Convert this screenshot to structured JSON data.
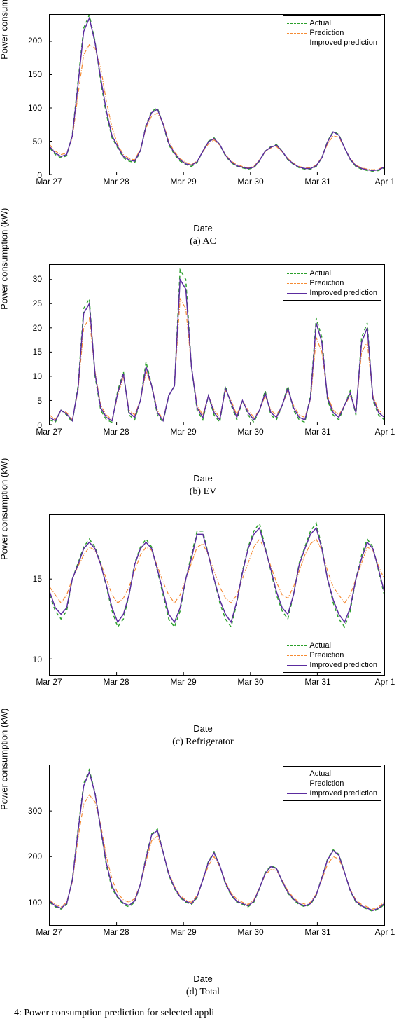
{
  "legend_labels": {
    "actual": "Actual",
    "prediction": "Prediction",
    "improved": "Improved prediction"
  },
  "series_style": {
    "actual": {
      "color": "#2ca02c",
      "width": 1.5,
      "dash": "5,4"
    },
    "prediction": {
      "color": "#f58b34",
      "width": 1.2,
      "dash": "6,2,1,2"
    },
    "improved": {
      "color": "#5b2c9f",
      "width": 1.5,
      "dash": ""
    }
  },
  "x_ticks": [
    "Mar 27",
    "Mar 28",
    "Mar 29",
    "Mar 30",
    "Mar 31",
    "Apr 1"
  ],
  "x_label": "Date",
  "y_label": "Power consumption (kW)",
  "charts": [
    {
      "id": "ac",
      "caption": "(a) AC",
      "ylim": [
        0,
        240
      ],
      "y_ticks": [
        0,
        50,
        100,
        150,
        200
      ],
      "legend_pos": "top-right",
      "series": {
        "actual": [
          40,
          30,
          25,
          28,
          60,
          140,
          220,
          240,
          200,
          140,
          90,
          55,
          40,
          25,
          20,
          18,
          35,
          75,
          95,
          100,
          75,
          45,
          30,
          20,
          15,
          12,
          18,
          35,
          50,
          55,
          45,
          28,
          18,
          12,
          10,
          8,
          10,
          20,
          35,
          42,
          45,
          35,
          22,
          15,
          10,
          8,
          8,
          12,
          25,
          50,
          65,
          60,
          40,
          22,
          12,
          8,
          6,
          5,
          6,
          10
        ],
        "prediction": [
          45,
          35,
          30,
          32,
          55,
          120,
          180,
          195,
          190,
          160,
          110,
          70,
          45,
          30,
          24,
          22,
          38,
          70,
          88,
          92,
          78,
          50,
          34,
          24,
          18,
          15,
          20,
          34,
          46,
          52,
          44,
          30,
          20,
          15,
          12,
          10,
          12,
          22,
          34,
          40,
          42,
          34,
          24,
          17,
          12,
          10,
          10,
          14,
          26,
          46,
          58,
          56,
          40,
          24,
          14,
          10,
          8,
          7,
          8,
          12
        ],
        "improved": [
          42,
          32,
          27,
          30,
          58,
          135,
          215,
          235,
          198,
          145,
          95,
          58,
          42,
          27,
          22,
          20,
          36,
          73,
          93,
          98,
          76,
          47,
          32,
          22,
          16,
          14,
          19,
          35,
          49,
          54,
          45,
          29,
          19,
          13,
          11,
          9,
          11,
          21,
          35,
          41,
          44,
          35,
          23,
          16,
          11,
          9,
          9,
          13,
          25,
          49,
          64,
          59,
          40,
          23,
          13,
          9,
          7,
          6,
          7,
          11
        ]
      }
    },
    {
      "id": "ev",
      "caption": "(b) EV",
      "ylim": [
        0,
        33
      ],
      "y_ticks": [
        0,
        5,
        10,
        15,
        20,
        25,
        30
      ],
      "legend_pos": "top-right",
      "series": {
        "actual": [
          1,
          0.5,
          3,
          2,
          0.5,
          8,
          24,
          26,
          10,
          3,
          1,
          0.5,
          7,
          11,
          2,
          1,
          5,
          13,
          8,
          2,
          0.5,
          6,
          8,
          32,
          30,
          12,
          3,
          1,
          6,
          2,
          0.5,
          8,
          4,
          1,
          5,
          2,
          0.5,
          3,
          7,
          2,
          1,
          4,
          8,
          3,
          1,
          0.5,
          6,
          22,
          18,
          5,
          2,
          1,
          4,
          7,
          2,
          18,
          21,
          5,
          2,
          1
        ],
        "prediction": [
          2,
          1,
          3,
          2.5,
          1,
          7,
          20,
          22,
          11,
          4,
          2,
          1,
          6,
          10,
          3,
          2,
          5,
          11,
          8,
          3,
          1,
          6,
          8,
          26,
          24,
          12,
          4,
          2,
          6,
          3,
          1.5,
          7,
          5,
          2,
          5,
          3,
          1.5,
          3,
          6,
          3,
          2,
          4,
          7,
          4,
          2,
          1.5,
          5,
          18,
          15,
          6,
          3,
          2,
          4,
          6,
          3,
          15,
          17,
          6,
          3,
          2
        ],
        "improved": [
          1.5,
          0.8,
          3,
          2.2,
          0.8,
          7.5,
          23,
          25,
          10.5,
          3.5,
          1.5,
          0.8,
          6.5,
          10.5,
          2.5,
          1.5,
          5,
          12,
          8,
          2.5,
          0.8,
          6,
          8,
          30,
          28,
          12,
          3.5,
          1.5,
          6,
          2.5,
          1,
          7.5,
          4.5,
          1.5,
          5,
          2.5,
          1,
          3,
          6.5,
          2.5,
          1.5,
          4,
          7.5,
          3.5,
          1.5,
          1,
          5.5,
          21,
          17,
          5.5,
          2.5,
          1.5,
          4,
          6.5,
          2.5,
          17,
          20,
          5.5,
          2.5,
          1.5
        ]
      }
    },
    {
      "id": "fridge",
      "caption": "(c) Refrigerator",
      "ylim": [
        9,
        19
      ],
      "y_ticks": [
        10,
        15
      ],
      "legend_pos": "bottom-right",
      "series": {
        "actual": [
          14,
          13,
          12.5,
          13,
          15,
          16,
          17,
          17.5,
          17,
          16,
          14.5,
          13,
          12,
          12.5,
          14,
          16,
          17,
          17.5,
          17,
          15.5,
          14,
          12.5,
          12,
          13,
          15,
          16.5,
          18,
          18,
          16.5,
          15,
          13.5,
          12.5,
          12,
          13.5,
          15.5,
          17,
          18,
          18.5,
          17,
          15.5,
          14,
          13,
          12.5,
          14,
          16,
          17,
          18,
          18.5,
          17,
          15,
          13.5,
          12.5,
          12,
          13,
          15,
          16.5,
          17.5,
          17,
          15.5,
          14
        ],
        "prediction": [
          14.5,
          14,
          13.5,
          14,
          15,
          15.8,
          16.5,
          17,
          16.8,
          16,
          15,
          14,
          13.5,
          13.8,
          14.5,
          15.5,
          16.5,
          17,
          16.8,
          15.8,
          14.8,
          14,
          13.5,
          14,
          15,
          16,
          17,
          17.2,
          16.5,
          15.5,
          14.5,
          13.8,
          13.5,
          14,
          15,
          16,
          17,
          17.5,
          16.8,
          15.8,
          14.8,
          14,
          13.8,
          14.5,
          15.5,
          16.5,
          17.2,
          17.5,
          16.8,
          15.5,
          14.5,
          14,
          13.5,
          14,
          15,
          16,
          17,
          16.8,
          15.8,
          15
        ],
        "improved": [
          14.2,
          13.2,
          12.8,
          13.2,
          15,
          15.9,
          16.9,
          17.3,
          16.9,
          15.9,
          14.6,
          13.2,
          12.3,
          12.8,
          14,
          15.9,
          16.9,
          17.3,
          16.9,
          15.6,
          14.2,
          12.8,
          12.3,
          13.2,
          15,
          16.3,
          17.8,
          17.8,
          16.5,
          15,
          13.7,
          12.8,
          12.3,
          13.6,
          15.4,
          16.9,
          17.8,
          18.2,
          16.9,
          15.6,
          14.2,
          13.2,
          12.8,
          14,
          15.9,
          16.9,
          17.8,
          18.2,
          16.9,
          15,
          13.7,
          12.8,
          12.3,
          13.2,
          15,
          16.3,
          17.3,
          16.9,
          15.6,
          14.2
        ]
      }
    },
    {
      "id": "total",
      "caption": "(d) Total",
      "ylim": [
        50,
        400
      ],
      "y_ticks": [
        100,
        200,
        300
      ],
      "legend_pos": "top-right",
      "series": {
        "actual": [
          100,
          90,
          85,
          95,
          150,
          260,
          360,
          390,
          340,
          260,
          180,
          130,
          110,
          95,
          90,
          100,
          140,
          200,
          250,
          260,
          210,
          160,
          130,
          110,
          100,
          95,
          110,
          150,
          190,
          210,
          180,
          140,
          115,
          100,
          95,
          90,
          100,
          130,
          165,
          180,
          175,
          145,
          120,
          105,
          95,
          90,
          95,
          115,
          155,
          195,
          215,
          205,
          165,
          125,
          100,
          90,
          85,
          80,
          85,
          95
        ],
        "prediction": [
          105,
          95,
          90,
          100,
          145,
          240,
          315,
          335,
          320,
          270,
          200,
          150,
          120,
          105,
          100,
          108,
          140,
          190,
          235,
          245,
          210,
          165,
          135,
          115,
          105,
          100,
          115,
          148,
          180,
          200,
          178,
          145,
          120,
          107,
          100,
          95,
          105,
          132,
          160,
          172,
          170,
          148,
          125,
          110,
          100,
          96,
          100,
          118,
          150,
          183,
          200,
          195,
          165,
          128,
          105,
          95,
          90,
          85,
          90,
          100
        ],
        "improved": [
          102,
          92,
          87,
          97,
          148,
          255,
          355,
          385,
          338,
          262,
          185,
          135,
          112,
          98,
          93,
          103,
          140,
          197,
          248,
          257,
          210,
          162,
          132,
          112,
          102,
          97,
          112,
          149,
          188,
          208,
          180,
          142,
          117,
          102,
          97,
          92,
          102,
          131,
          163,
          178,
          174,
          146,
          122,
          107,
          97,
          92,
          97,
          116,
          153,
          193,
          213,
          203,
          165,
          126,
          102,
          92,
          87,
          82,
          87,
          97
        ]
      }
    }
  ],
  "footer": "4: Power consumption prediction for selected appli"
}
